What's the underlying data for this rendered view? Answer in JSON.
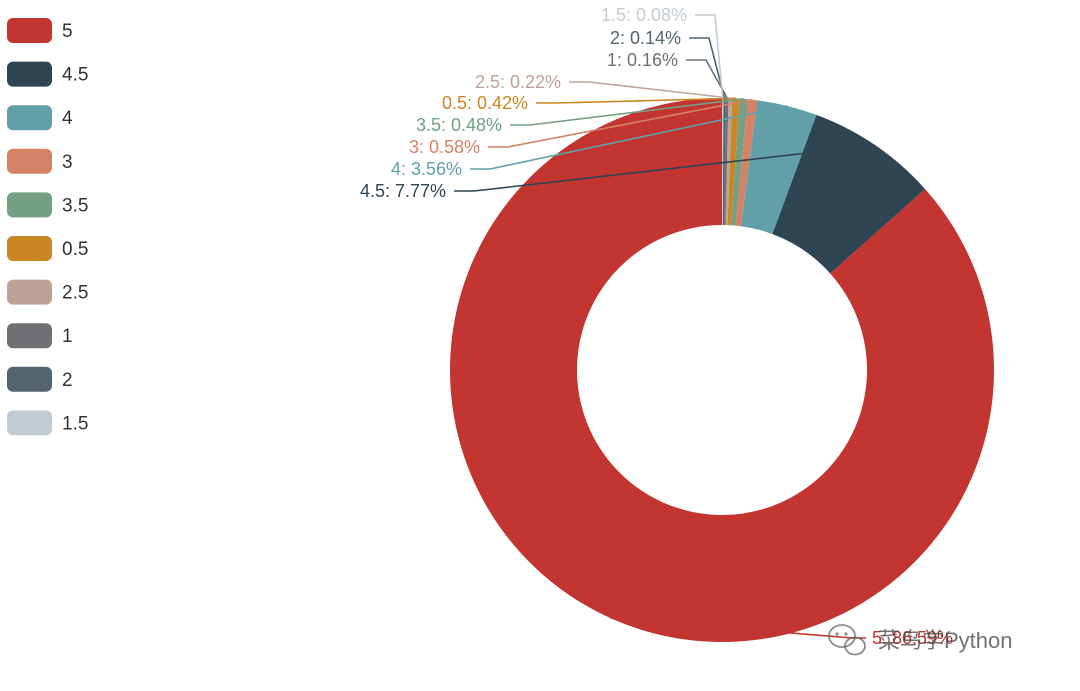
{
  "chart_data": {
    "type": "pie",
    "style": "donut",
    "legend_position": "left",
    "categories": [
      "5",
      "4.5",
      "4",
      "3",
      "3.5",
      "0.5",
      "2.5",
      "1",
      "2",
      "1.5"
    ],
    "values": [
      86.59,
      7.77,
      3.56,
      0.58,
      0.48,
      0.42,
      0.22,
      0.16,
      0.14,
      0.08
    ],
    "slice_labels": [
      "5: 86.59%",
      "4.5: 7.77%",
      "4: 3.56%",
      "3: 0.58%",
      "3.5: 0.48%",
      "0.5: 0.42%",
      "2.5: 0.22%",
      "1: 0.16%",
      "2: 0.14%",
      "1.5: 0.08%"
    ],
    "colors": [
      "#c23531",
      "#2f4554",
      "#61a0a8",
      "#d48265",
      "#749f83",
      "#ca8622",
      "#bda29a",
      "#6e7074",
      "#546570",
      "#c4ccd3"
    ]
  },
  "watermark": {
    "text": "菜鸟学Python",
    "icon": "wechat-icon"
  }
}
